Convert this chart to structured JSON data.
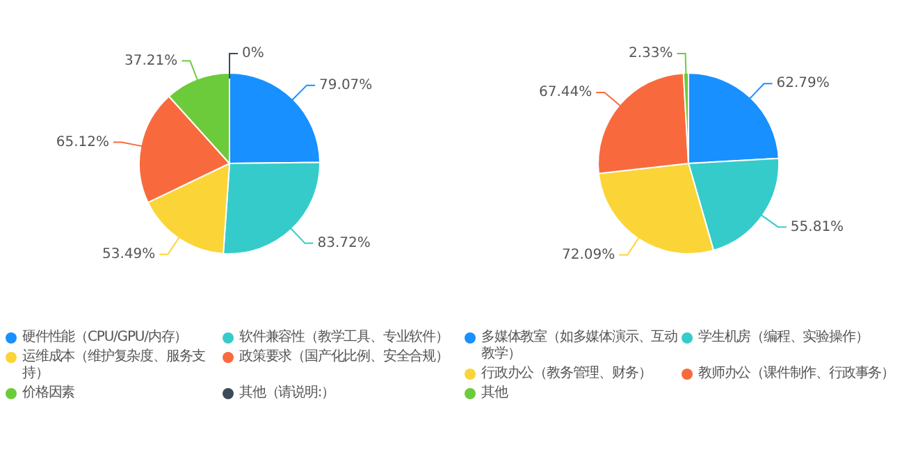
{
  "chart_data": [
    {
      "type": "pie",
      "categories": [
        "硬件性能（CPU/GPU/内存）",
        "软件兼容性（教学工具、专业软件）",
        "运维成本（维护复杂度、服务支持）",
        "政策要求（国产化比例、安全合规）",
        "价格因素",
        "其他（请说明:）"
      ],
      "values": [
        79.07,
        83.72,
        53.49,
        65.12,
        37.21,
        0
      ],
      "value_labels": [
        "79.07%",
        "83.72%",
        "53.49%",
        "65.12%",
        "37.21%",
        "0%"
      ],
      "colors": [
        "#1890ff",
        "#36cbcb",
        "#fbd437",
        "#f86a3e",
        "#6ccb3a",
        "#3b4a58"
      ],
      "legend": "bottom"
    },
    {
      "type": "pie",
      "categories": [
        "多媒体教室（如多媒体演示、互动教学）",
        "学生机房（编程、实验操作）",
        "行政办公（教务管理、财务）",
        "教师办公（课件制作、行政事务）",
        "其他"
      ],
      "values": [
        62.79,
        55.81,
        72.09,
        67.44,
        2.33
      ],
      "value_labels": [
        "62.79%",
        "55.81%",
        "72.09%",
        "67.44%",
        "2.33%"
      ],
      "colors": [
        "#1890ff",
        "#36cbcb",
        "#fbd437",
        "#f86a3e",
        "#6ccb3a"
      ],
      "legend": "bottom"
    }
  ]
}
